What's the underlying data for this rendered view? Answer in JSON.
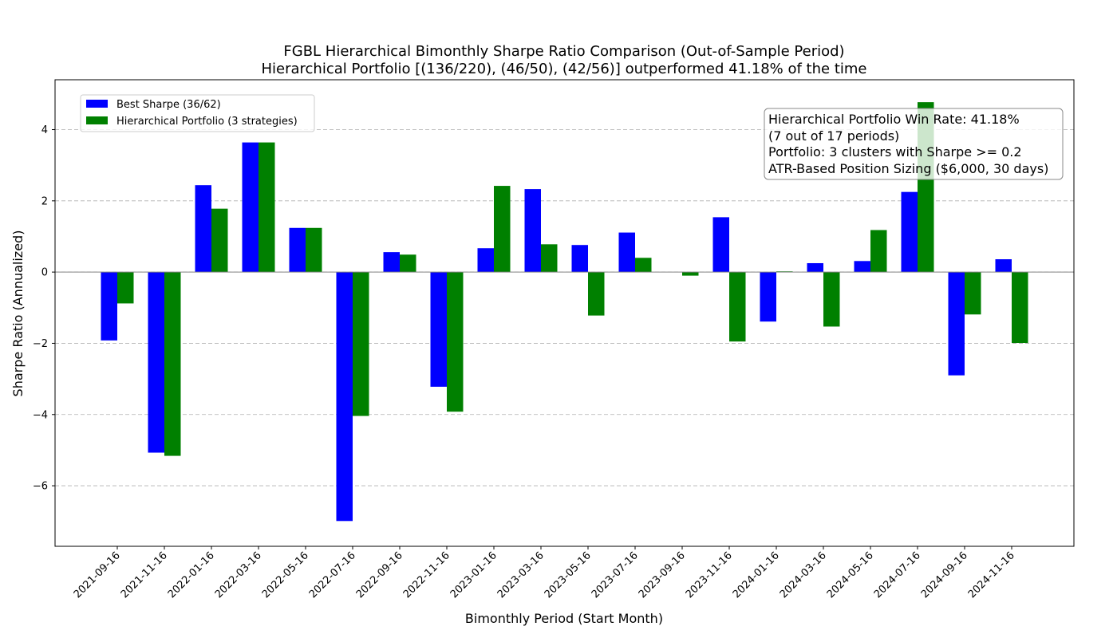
{
  "chart_data": {
    "type": "bar",
    "title": "FGBL Hierarchical Bimonthly Sharpe Ratio Comparison (Out-of-Sample Period)",
    "subtitle": "Hierarchical Portfolio [(136/220), (46/50), (42/56)] outperformed 41.18% of the time",
    "xlabel": "Bimonthly Period (Start Month)",
    "ylabel": "Sharpe Ratio (Annualized)",
    "ylim": [
      -7.7,
      5.4
    ],
    "yticks": [
      -6,
      -4,
      -2,
      0,
      2,
      4
    ],
    "grid": "y-dashed",
    "legend_position": "upper-left",
    "categories": [
      "2021-09-16",
      "2021-11-16",
      "2022-01-16",
      "2022-03-16",
      "2022-05-16",
      "2022-07-16",
      "2022-09-16",
      "2022-11-16",
      "2023-01-16",
      "2023-03-16",
      "2023-05-16",
      "2023-07-16",
      "2023-09-16",
      "2023-11-16",
      "2024-01-16",
      "2024-03-16",
      "2024-05-16",
      "2024-07-16",
      "2024-09-16",
      "2024-11-16"
    ],
    "series": [
      {
        "name": "Best Sharpe (36/62)",
        "color": "#0000ff",
        "values": [
          -1.92,
          -5.07,
          2.44,
          3.64,
          1.24,
          -6.99,
          0.56,
          -3.22,
          0.67,
          2.33,
          0.76,
          1.11,
          0.0,
          1.54,
          -1.39,
          0.25,
          0.31,
          2.25,
          -2.9,
          0.36
        ]
      },
      {
        "name": "Hierarchical Portfolio (3 strategies)",
        "color": "#008000",
        "values": [
          -0.88,
          -5.16,
          1.78,
          3.64,
          1.24,
          -4.04,
          0.49,
          -3.92,
          2.42,
          0.78,
          -1.22,
          0.4,
          -0.1,
          -1.95,
          0.02,
          -1.53,
          1.18,
          4.77,
          -1.19,
          -1.99
        ]
      }
    ],
    "annotation": [
      "Hierarchical Portfolio Win Rate: 41.18%",
      "(7 out of 17 periods)",
      "Portfolio: 3 clusters with Sharpe >= 0.2",
      "ATR-Based Position Sizing ($6,000, 30 days)"
    ]
  }
}
